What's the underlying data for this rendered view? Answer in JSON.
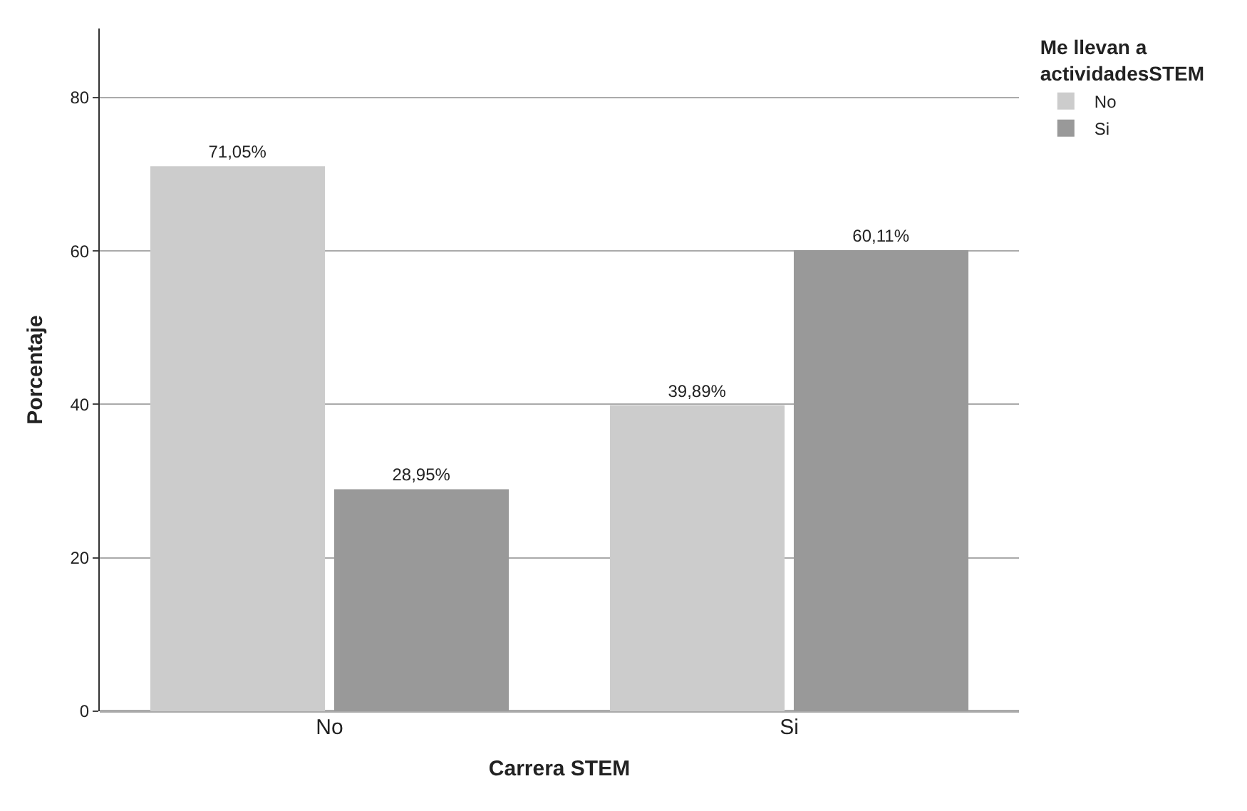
{
  "chart_data": {
    "type": "bar",
    "xlabel": "Carrera STEM",
    "ylabel": "Porcentaje",
    "legend_title": "Me llevan a actividadesSTEM",
    "categories": [
      "No",
      "Si"
    ],
    "series": [
      {
        "name": "No",
        "color": "#cccccc",
        "values": [
          71.05,
          39.89
        ],
        "value_labels": [
          "71,05%",
          "39,89%"
        ]
      },
      {
        "name": "Si",
        "color": "#999999",
        "values": [
          28.95,
          60.11
        ],
        "value_labels": [
          "28,95%",
          "60,11%"
        ]
      }
    ],
    "ylim": [
      0,
      89
    ],
    "yticks": [
      0,
      20,
      40,
      60,
      80
    ],
    "grid": "y",
    "legend": "top right"
  }
}
